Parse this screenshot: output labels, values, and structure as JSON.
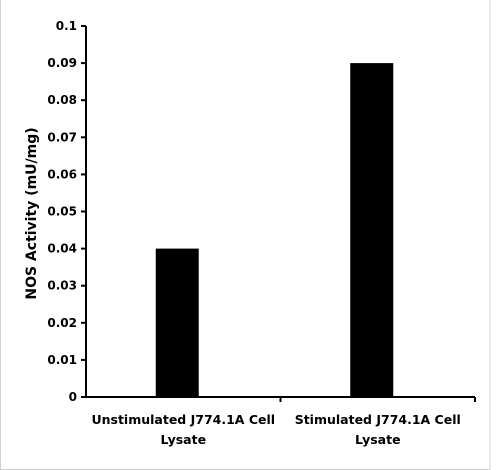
{
  "chart_data": {
    "type": "bar",
    "title": "",
    "xlabel": "",
    "ylabel": "NOS Activity (mU/mg)",
    "ylim": [
      0,
      0.1
    ],
    "yticks": [
      "0",
      "0.01",
      "0.02",
      "0.03",
      "0.04",
      "0.05",
      "0.06",
      "0.07",
      "0.08",
      "0.09",
      "0.1"
    ],
    "grid": false,
    "legend": "none",
    "bar_color": "#000000",
    "categories": [
      [
        "Unstimulated J774.1A Cell",
        "Lysate"
      ],
      [
        "Stimulated J774.1A Cell",
        "Lysate"
      ]
    ],
    "values": [
      0.04,
      0.09
    ]
  }
}
